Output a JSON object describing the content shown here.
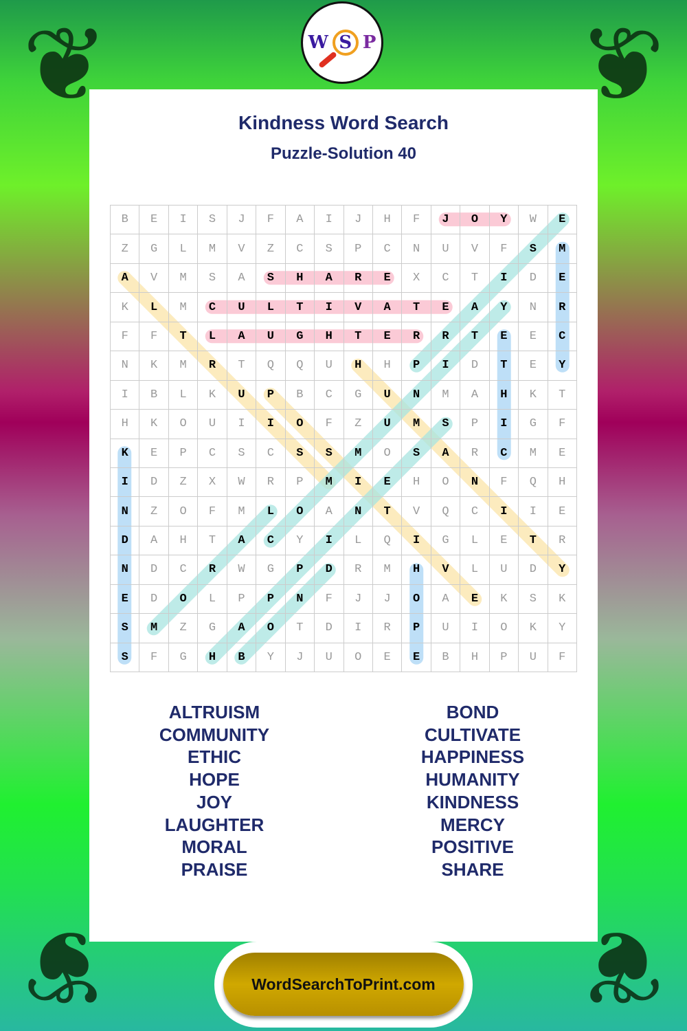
{
  "logo": {
    "letters": [
      "W",
      "S",
      "P"
    ]
  },
  "header": {
    "title": "Kindness Word Search",
    "subtitle": "Puzzle-Solution 40"
  },
  "grid": [
    "BEISJFAIJHFJOYWE",
    "ZGLMVZCSPCNUVFSM",
    "AVMSASHAREXCTIDE",
    "KLMCULTIVATEAYNR",
    "FFTLAUGHTERRTEEC",
    "NKMRTQQUHHPIDTEY",
    "IBLKUPBCGUNMAHKT",
    "HKOUIIOFZUMSPIGF",
    "KEPCSCSSMOSARCME",
    "IDZXWRPMIEHONFQH",
    "NZOFMLOANTVQCIIE",
    "DAHTACYILQIGLETR",
    "NDCRWGPDRMHVLUDY",
    "EDOLPPNFJJOAEKSK",
    "SMZGAOTDIRPUIOKY",
    "SFGHBYJUOEEBHPUF"
  ],
  "colors": {
    "horizontal": "#f9b8c8",
    "vertical": "#a8d4f4",
    "diag_up": "#a8e4e0",
    "diag_down": "#fbe4a8",
    "title": "#1f2a6a",
    "footer": "#c8a000"
  },
  "solutions": [
    {
      "word": "JOY",
      "start": [
        0,
        11
      ],
      "end": [
        0,
        13
      ],
      "dir": "horizontal"
    },
    {
      "word": "SHARE",
      "start": [
        2,
        5
      ],
      "end": [
        2,
        9
      ],
      "dir": "horizontal"
    },
    {
      "word": "CULTIVATE",
      "start": [
        3,
        3
      ],
      "end": [
        3,
        11
      ],
      "dir": "horizontal"
    },
    {
      "word": "LAUGHTER",
      "start": [
        4,
        3
      ],
      "end": [
        4,
        10
      ],
      "dir": "horizontal"
    },
    {
      "word": "MERCY",
      "start": [
        1,
        15
      ],
      "end": [
        5,
        15
      ],
      "dir": "vertical"
    },
    {
      "word": "ETHIC",
      "start": [
        4,
        13
      ],
      "end": [
        8,
        13
      ],
      "dir": "vertical"
    },
    {
      "word": "KINDNESS",
      "start": [
        8,
        0
      ],
      "end": [
        15,
        0
      ],
      "dir": "vertical"
    },
    {
      "word": "HOPE",
      "start": [
        12,
        10
      ],
      "end": [
        15,
        10
      ],
      "dir": "vertical"
    },
    {
      "word": "ALTRUISM",
      "start": [
        2,
        0
      ],
      "end": [
        9,
        7
      ],
      "dir": "diag_down"
    },
    {
      "word": "POSITIVE",
      "start": [
        6,
        5
      ],
      "end": [
        13,
        12
      ],
      "dir": "diag_down"
    },
    {
      "word": "HUMANITY",
      "start": [
        5,
        8
      ],
      "end": [
        12,
        15
      ],
      "dir": "diag_down"
    },
    {
      "word": "PRAISE",
      "start": [
        5,
        10
      ],
      "end": [
        0,
        15
      ],
      "dir": "diag_up"
    },
    {
      "word": "COMMUNITY",
      "start": [
        11,
        5
      ],
      "end": [
        3,
        13
      ],
      "dir": "diag_up"
    },
    {
      "word": "MORAL",
      "start": [
        14,
        1
      ],
      "end": [
        10,
        5
      ],
      "dir": "diag_up"
    },
    {
      "word": "BOND",
      "start": [
        15,
        4
      ],
      "end": [
        12,
        7
      ],
      "dir": "diag_up"
    },
    {
      "word": "HAPPINESS",
      "start": [
        15,
        3
      ],
      "end": [
        7,
        11
      ],
      "dir": "diag_up"
    }
  ],
  "word_list": {
    "left": [
      "ALTRUISM",
      "COMMUNITY",
      "ETHIC",
      "HOPE",
      "JOY",
      "LAUGHTER",
      "MORAL",
      "PRAISE"
    ],
    "right": [
      "BOND",
      "CULTIVATE",
      "HAPPINESS",
      "HUMANITY",
      "KINDNESS",
      "MERCY",
      "POSITIVE",
      "SHARE"
    ]
  },
  "footer": {
    "site": "WordSearchToPrint.com"
  }
}
